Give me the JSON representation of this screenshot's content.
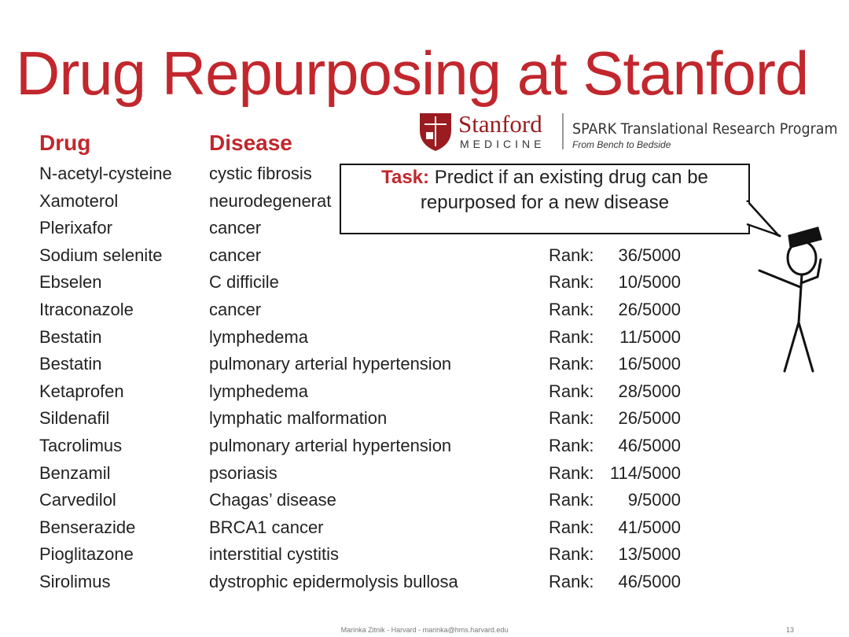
{
  "title": "Drug Repurposing at Stanford",
  "logo": {
    "name": "Stanford",
    "sub": "MEDICINE",
    "program": "SPARK Translational Research Program",
    "tagline": "From Bench to Bedside"
  },
  "table": {
    "headers": [
      "Drug",
      "Disease"
    ],
    "rank_label": "Rank:",
    "rows": [
      {
        "drug": "N-acetyl-cysteine",
        "disease": "cystic fibrosis"
      },
      {
        "drug": "Xamoterol",
        "disease": "neurodegenerat"
      },
      {
        "drug": "Plerixafor",
        "disease": "cancer"
      },
      {
        "drug": "Sodium selenite",
        "disease": "cancer",
        "rank": "36/5000"
      },
      {
        "drug": "Ebselen",
        "disease": "C difficile",
        "rank": "10/5000"
      },
      {
        "drug": "Itraconazole",
        "disease": "cancer",
        "rank": "26/5000"
      },
      {
        "drug": "Bestatin",
        "disease": "lymphedema",
        "rank": "11/5000"
      },
      {
        "drug": "Bestatin",
        "disease": "pulmonary arterial hypertension",
        "rank": "16/5000"
      },
      {
        "drug": "Ketaprofen",
        "disease": "lymphedema",
        "rank": "28/5000"
      },
      {
        "drug": "Sildenafil",
        "disease": "lymphatic malformation",
        "rank": "26/5000"
      },
      {
        "drug": "Tacrolimus",
        "disease": "pulmonary arterial hypertension",
        "rank": "46/5000"
      },
      {
        "drug": "Benzamil",
        "disease": "psoriasis",
        "rank": "114/5000"
      },
      {
        "drug": "Carvedilol",
        "disease": "Chagas’ disease",
        "rank": "9/5000"
      },
      {
        "drug": "Benserazide",
        "disease": "BRCA1 cancer",
        "rank": "41/5000"
      },
      {
        "drug": "Pioglitazone",
        "disease": "interstitial cystitis",
        "rank": "13/5000"
      },
      {
        "drug": "Sirolimus",
        "disease": "dystrophic epidermolysis bullosa",
        "rank": "46/5000"
      }
    ]
  },
  "task": {
    "label": "Task:",
    "lines": [
      "Predict if an existing drug can be",
      "repurposed for a new disease"
    ]
  },
  "footer": {
    "text": "Marinka Zitnik - Harvard - marinka@hms.harvard.edu",
    "page": "13"
  }
}
